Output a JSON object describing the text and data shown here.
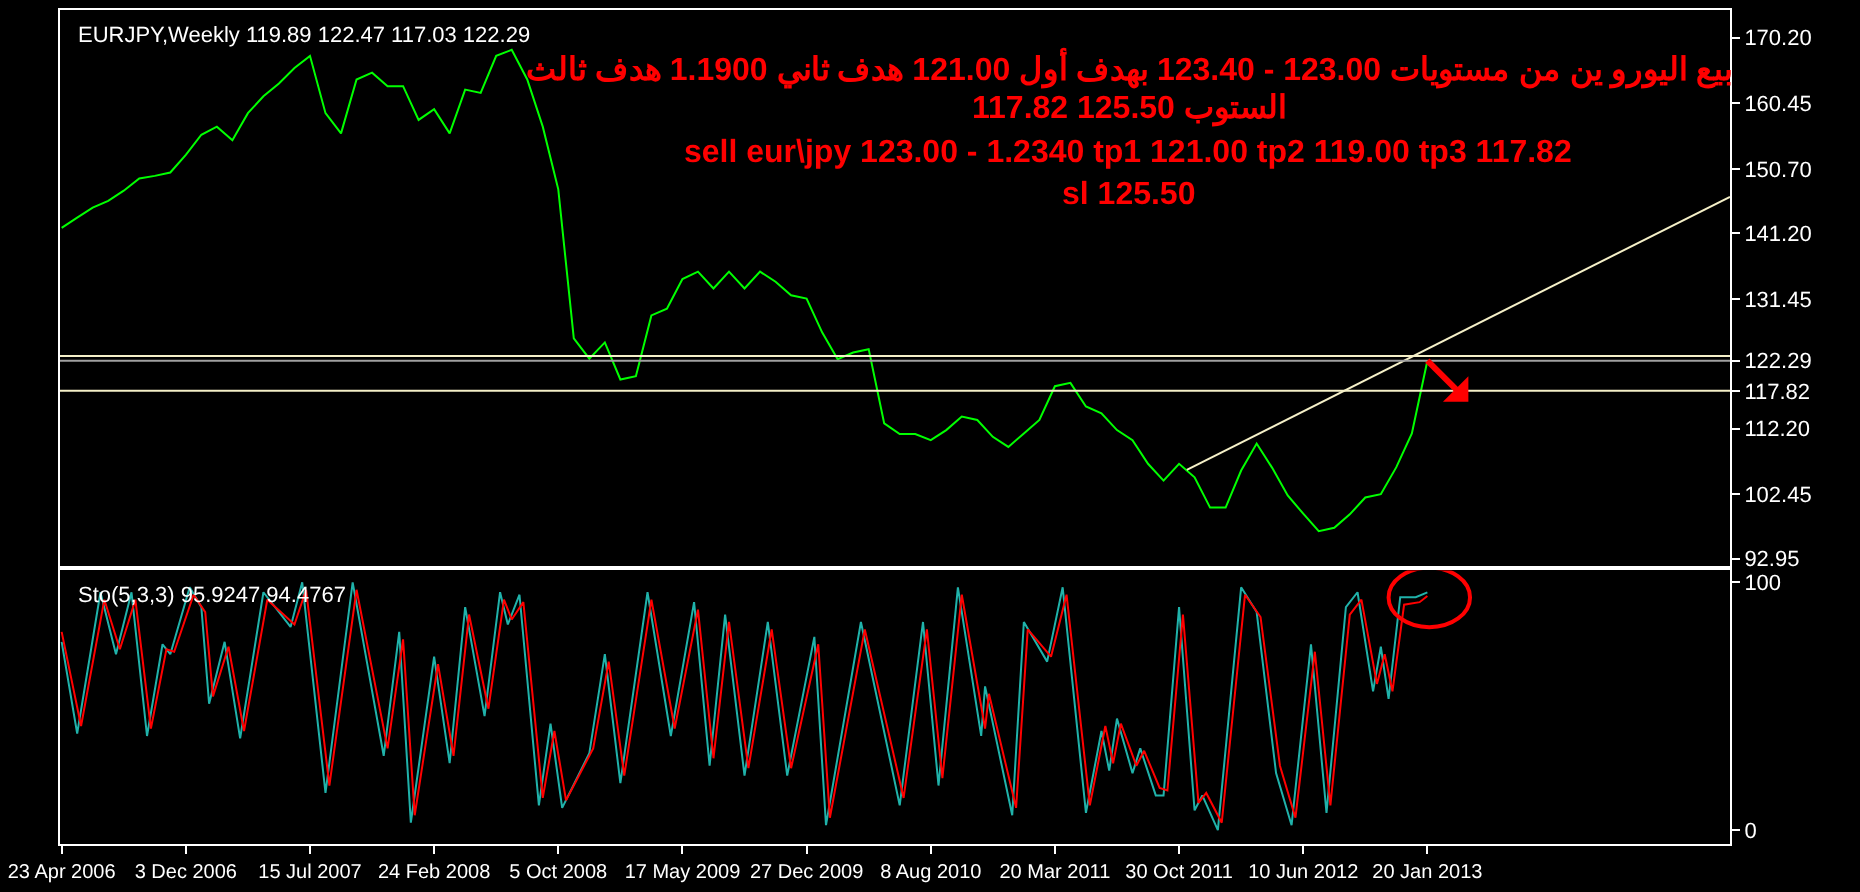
{
  "chart_data": [
    {
      "type": "line",
      "title": "EURJPY,Weekly 119.89 122.47 117.03 122.29",
      "annotations": [
        "بيع اليورو ين من مستويات 123.00 - 123.40 بهدف أول 121.00 هدف ثاني 1.1900 هدف ثالث",
        "117.82 الستوب 125.50",
        "sell eur\\jpy 123.00 - 1.2340 tp1 121.00 tp2 119.00 tp3 117.82",
        "sl 125.50"
      ],
      "x": [
        "2006-04-23",
        "2006-05-21",
        "2006-06-18",
        "2006-07-16",
        "2006-08-13",
        "2006-09-10",
        "2006-10-08",
        "2006-11-05",
        "2006-12-03",
        "2006-12-31",
        "2007-01-28",
        "2007-02-25",
        "2007-03-25",
        "2007-04-22",
        "2007-05-20",
        "2007-06-17",
        "2007-07-15",
        "2007-08-12",
        "2007-09-09",
        "2007-10-07",
        "2007-11-04",
        "2007-12-02",
        "2007-12-30",
        "2008-01-27",
        "2008-02-24",
        "2008-03-23",
        "2008-04-20",
        "2008-05-18",
        "2008-06-15",
        "2008-07-13",
        "2008-08-10",
        "2008-09-07",
        "2008-10-05",
        "2008-11-02",
        "2008-11-30",
        "2008-12-28",
        "2009-01-25",
        "2009-02-22",
        "2009-03-22",
        "2009-04-19",
        "2009-05-17",
        "2009-06-14",
        "2009-07-12",
        "2009-08-09",
        "2009-09-06",
        "2009-10-04",
        "2009-11-01",
        "2009-11-29",
        "2009-12-27",
        "2010-01-24",
        "2010-02-21",
        "2010-03-21",
        "2010-04-18",
        "2010-05-16",
        "2010-06-13",
        "2010-07-11",
        "2010-08-08",
        "2010-09-05",
        "2010-10-03",
        "2010-10-31",
        "2010-11-28",
        "2010-12-26",
        "2011-01-23",
        "2011-02-20",
        "2011-03-20",
        "2011-04-17",
        "2011-05-15",
        "2011-06-12",
        "2011-07-10",
        "2011-08-07",
        "2011-09-04",
        "2011-10-02",
        "2011-10-30",
        "2011-11-27",
        "2011-12-25",
        "2012-01-22",
        "2012-02-19",
        "2012-03-18",
        "2012-04-15",
        "2012-05-13",
        "2012-06-10",
        "2012-07-08",
        "2012-08-05",
        "2012-09-02",
        "2012-09-30",
        "2012-10-28",
        "2012-11-25",
        "2012-12-23",
        "2013-01-20"
      ],
      "series": [
        {
          "color": "#00ff00",
          "values": [
            142,
            143.5,
            145,
            146,
            147.5,
            149.3,
            149.7,
            150.2,
            152.8,
            155.8,
            157,
            155,
            159,
            161.5,
            163.4,
            165.7,
            167.5,
            159,
            156,
            164,
            165,
            163,
            163,
            158,
            159.6,
            156,
            162.5,
            162,
            167.5,
            168.4,
            164,
            157,
            147.7,
            125.6,
            122.6,
            125,
            119.5,
            120,
            129,
            130,
            134.4,
            135.5,
            133,
            135.5,
            133,
            135.5,
            134,
            132,
            131.5,
            126.5,
            122.5,
            123.5,
            124,
            113,
            111.4,
            111.4,
            110.5,
            112,
            114,
            113.5,
            111,
            109.5,
            111.5,
            113.5,
            118.5,
            119,
            115.5,
            114.5,
            112,
            110.5,
            107,
            104.5,
            107,
            105,
            100.5,
            100.5,
            106,
            110,
            106.4,
            102.3,
            99.6,
            97,
            97.5,
            99.5,
            102,
            102.5,
            106.5,
            111.5,
            122.29
          ]
        },
        {
          "type": "line",
          "color": "#f5f0c8",
          "x": [
            "2011-11-13",
            "2014-07-20"
          ],
          "values": [
            106.1,
            146.6
          ]
        }
      ],
      "xlim": [
        "2006-04-20",
        "2014-07-20"
      ],
      "ref_lines": [
        {
          "axis": "y",
          "value": 123.0,
          "color": "#f5f0c8"
        },
        {
          "axis": "y",
          "value": 122.29,
          "color": "#a0a0a0"
        },
        {
          "axis": "y",
          "value": 117.82,
          "color": "#f5f0c8"
        }
      ],
      "ylim": [
        91.8,
        174.3
      ],
      "yticks": [
        {
          "value": 170.2,
          "label": "170.20"
        },
        160.45,
        {
          "value": 150.7,
          "label": "150.70"
        },
        {
          "value": 141.2,
          "label": "141.20"
        },
        131.45,
        122.29,
        117.82,
        {
          "value": 112.2,
          "label": "112.20"
        },
        102.45,
        92.95
      ],
      "tick_labels": "y"
    },
    {
      "type": "line",
      "title": "Sto(5,3,3) 95.9247 94.4767",
      "series": [
        {
          "color": "#20b2aa",
          "x": [
            "2006-04-23",
            "2006-05-21",
            "2006-07-02",
            "2006-07-30",
            "2006-08-27",
            "2006-09-24",
            "2006-10-22",
            "2006-11-05",
            "2006-12-10",
            "2006-12-31",
            "2007-01-14",
            "2007-02-11",
            "2007-03-11",
            "2007-04-22",
            "2007-06-10",
            "2007-07-01",
            "2007-08-12",
            "2007-09-30",
            "2007-11-25",
            "2007-12-23",
            "2008-01-13",
            "2008-02-24",
            "2008-03-23",
            "2008-04-20",
            "2008-05-25",
            "2008-06-22",
            "2008-07-06",
            "2008-07-27",
            "2008-08-31",
            "2008-09-21",
            "2008-10-12",
            "2008-11-30",
            "2008-12-28",
            "2009-01-25",
            "2009-03-15",
            "2009-04-26",
            "2009-06-07",
            "2009-07-05",
            "2009-08-02",
            "2009-09-06",
            "2009-10-18",
            "2009-11-22",
            "2010-01-10",
            "2010-01-31",
            "2010-04-04",
            "2010-06-13",
            "2010-07-25",
            "2010-08-22",
            "2010-09-26",
            "2010-11-07",
            "2010-11-14",
            "2011-01-02",
            "2011-01-23",
            "2011-03-06",
            "2011-04-03",
            "2011-05-15",
            "2011-06-12",
            "2011-06-26",
            "2011-07-10",
            "2011-08-07",
            "2011-08-21",
            "2011-09-18",
            "2011-10-02",
            "2011-10-30",
            "2011-11-27",
            "2011-12-11",
            "2012-01-08",
            "2012-02-19",
            "2012-03-18",
            "2012-04-22",
            "2012-05-20",
            "2012-06-24",
            "2012-07-22",
            "2012-08-26",
            "2012-09-16",
            "2012-10-14",
            "2012-10-28",
            "2012-11-11",
            "2012-12-02",
            "2012-12-30",
            "2013-01-20"
          ],
          "values": [
            76,
            39,
            96,
            71,
            96,
            38,
            75,
            71,
            98,
            90,
            51,
            76,
            37,
            96,
            82,
            100,
            15,
            100,
            30,
            80,
            3,
            70,
            27,
            90,
            46,
            96,
            83,
            95,
            10,
            43,
            9,
            31,
            71,
            19,
            96,
            38,
            92,
            26,
            87,
            22,
            84,
            22,
            78,
            2,
            84,
            10,
            84,
            18,
            98,
            38,
            58,
            6,
            84,
            68,
            98,
            7,
            40,
            24,
            45,
            23,
            33,
            14,
            14,
            90,
            8,
            14,
            0,
            98,
            88,
            23,
            2,
            75,
            7,
            90,
            96,
            56,
            74,
            53,
            94,
            94,
            95.9247
          ]
        },
        {
          "color": "#ff0000",
          "x": [
            "2006-04-23",
            "2006-05-28",
            "2006-07-09",
            "2006-08-06",
            "2006-09-03",
            "2006-10-01",
            "2006-10-29",
            "2006-11-12",
            "2006-12-17",
            "2007-01-07",
            "2007-01-21",
            "2007-02-18",
            "2007-03-18",
            "2007-04-29",
            "2007-06-17",
            "2007-07-08",
            "2007-08-19",
            "2007-10-07",
            "2007-12-02",
            "2007-12-30",
            "2008-01-20",
            "2008-03-02",
            "2008-03-30",
            "2008-04-27",
            "2008-06-01",
            "2008-06-29",
            "2008-07-13",
            "2008-08-03",
            "2008-09-07",
            "2008-09-28",
            "2008-10-19",
            "2008-12-07",
            "2009-01-04",
            "2009-02-01",
            "2009-03-22",
            "2009-05-03",
            "2009-06-14",
            "2009-07-12",
            "2009-08-09",
            "2009-09-13",
            "2009-10-25",
            "2009-11-29",
            "2010-01-17",
            "2010-02-07",
            "2010-04-11",
            "2010-06-20",
            "2010-08-01",
            "2010-08-29",
            "2010-10-03",
            "2010-11-14",
            "2010-11-21",
            "2011-01-09",
            "2011-01-30",
            "2011-03-13",
            "2011-04-10",
            "2011-05-22",
            "2011-06-19",
            "2011-07-03",
            "2011-07-17",
            "2011-08-14",
            "2011-08-28",
            "2011-09-25",
            "2011-10-09",
            "2011-11-06",
            "2011-12-04",
            "2011-12-18",
            "2012-01-15",
            "2012-02-26",
            "2012-03-25",
            "2012-04-29",
            "2012-05-27",
            "2012-07-01",
            "2012-07-29",
            "2012-09-02",
            "2012-09-23",
            "2012-10-21",
            "2012-11-04",
            "2012-11-18",
            "2012-12-09",
            "2013-01-06",
            "2013-01-20"
          ],
          "values": [
            80,
            42,
            93,
            73,
            93,
            41,
            73,
            72,
            95,
            88,
            54,
            74,
            40,
            93,
            83,
            97,
            18,
            97,
            33,
            77,
            6,
            67,
            30,
            87,
            49,
            93,
            85,
            92,
            13,
            40,
            12,
            33,
            68,
            22,
            93,
            41,
            89,
            29,
            84,
            25,
            81,
            25,
            75,
            5,
            81,
            13,
            81,
            21,
            95,
            41,
            55,
            9,
            81,
            70,
            95,
            10,
            42,
            27,
            43,
            26,
            32,
            17,
            16,
            87,
            11,
            15,
            3,
            95,
            86,
            26,
            5,
            72,
            10,
            87,
            93,
            59,
            71,
            56,
            91,
            92,
            94.4767
          ]
        }
      ],
      "xlim": [
        "2006-04-20",
        "2014-07-20"
      ],
      "xticks": [
        {
          "value": "2006-04-23",
          "label": "23 Apr 2006"
        },
        {
          "value": "2006-12-03",
          "label": "3 Dec 2006"
        },
        {
          "value": "2007-07-15",
          "label": "15 Jul 2007"
        },
        {
          "value": "2008-02-24",
          "label": "24 Feb 2008"
        },
        {
          "value": "2008-10-05",
          "label": "5 Oct 2008"
        },
        {
          "value": "2009-05-17",
          "label": "17 May 2009"
        },
        {
          "value": "2009-12-27",
          "label": "27 Dec 2009"
        },
        {
          "value": "2010-08-08",
          "label": "8 Aug 2010"
        },
        {
          "value": "2011-03-20",
          "label": "20 Mar 2011"
        },
        {
          "value": "2011-10-30",
          "label": "30 Oct 2011"
        },
        {
          "value": "2012-06-10",
          "label": "10 Jun 2012"
        },
        {
          "value": "2013-01-20",
          "label": "20 Jan 2013"
        }
      ],
      "ylim": [
        -5.6,
        104.8
      ],
      "yticks": [
        100,
        0
      ]
    }
  ]
}
